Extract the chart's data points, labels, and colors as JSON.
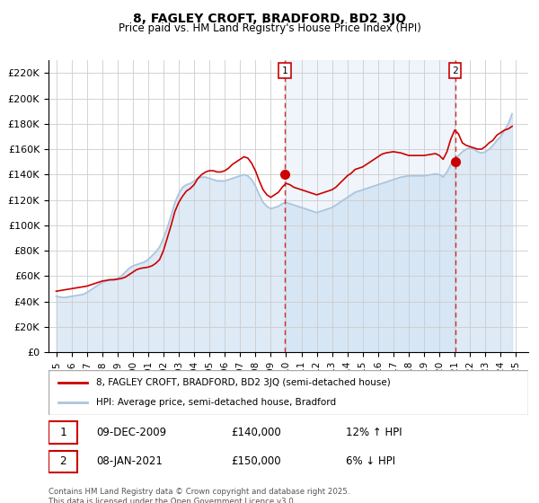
{
  "title": "8, FAGLEY CROFT, BRADFORD, BD2 3JQ",
  "subtitle": "Price paid vs. HM Land Registry's House Price Index (HPI)",
  "xlabel": "",
  "ylabel": "",
  "background_color": "#ffffff",
  "plot_bg_color": "#ffffff",
  "grid_color": "#cccccc",
  "hpi_line_color": "#aac4dd",
  "price_line_color": "#cc0000",
  "marker1_x": 2009.92,
  "marker1_label": "1",
  "marker1_price": 140000,
  "marker1_date": "09-DEC-2009",
  "marker1_hpi_change": "12% ↑ HPI",
  "marker2_x": 2021.04,
  "marker2_label": "2",
  "marker2_price": 150000,
  "marker2_date": "08-JAN-2021",
  "marker2_hpi_change": "6% ↓ HPI",
  "ylim": [
    0,
    230000
  ],
  "xlim": [
    1994.5,
    2025.8
  ],
  "legend_label_price": "8, FAGLEY CROFT, BRADFORD, BD2 3JQ (semi-detached house)",
  "legend_label_hpi": "HPI: Average price, semi-detached house, Bradford",
  "footer": "Contains HM Land Registry data © Crown copyright and database right 2025.\nThis data is licensed under the Open Government Licence v3.0.",
  "hpi_data": {
    "x": [
      1995.0,
      1995.25,
      1995.5,
      1995.75,
      1996.0,
      1996.25,
      1996.5,
      1996.75,
      1997.0,
      1997.25,
      1997.5,
      1997.75,
      1998.0,
      1998.25,
      1998.5,
      1998.75,
      1999.0,
      1999.25,
      1999.5,
      1999.75,
      2000.0,
      2000.25,
      2000.5,
      2000.75,
      2001.0,
      2001.25,
      2001.5,
      2001.75,
      2002.0,
      2002.25,
      2002.5,
      2002.75,
      2003.0,
      2003.25,
      2003.5,
      2003.75,
      2004.0,
      2004.25,
      2004.5,
      2004.75,
      2005.0,
      2005.25,
      2005.5,
      2005.75,
      2006.0,
      2006.25,
      2006.5,
      2006.75,
      2007.0,
      2007.25,
      2007.5,
      2007.75,
      2008.0,
      2008.25,
      2008.5,
      2008.75,
      2009.0,
      2009.25,
      2009.5,
      2009.75,
      2010.0,
      2010.25,
      2010.5,
      2010.75,
      2011.0,
      2011.25,
      2011.5,
      2011.75,
      2012.0,
      2012.25,
      2012.5,
      2012.75,
      2013.0,
      2013.25,
      2013.5,
      2013.75,
      2014.0,
      2014.25,
      2014.5,
      2014.75,
      2015.0,
      2015.25,
      2015.5,
      2015.75,
      2016.0,
      2016.25,
      2016.5,
      2016.75,
      2017.0,
      2017.25,
      2017.5,
      2017.75,
      2018.0,
      2018.25,
      2018.5,
      2018.75,
      2019.0,
      2019.25,
      2019.5,
      2019.75,
      2020.0,
      2020.25,
      2020.5,
      2020.75,
      2021.0,
      2021.25,
      2021.5,
      2021.75,
      2022.0,
      2022.25,
      2022.5,
      2022.75,
      2023.0,
      2023.25,
      2023.5,
      2023.75,
      2024.0,
      2024.25,
      2024.5,
      2024.75
    ],
    "y": [
      44000,
      43500,
      43000,
      43500,
      44000,
      44500,
      45000,
      45500,
      47000,
      49000,
      51000,
      53000,
      55000,
      56000,
      57000,
      57500,
      58000,
      60000,
      63000,
      66000,
      68000,
      69000,
      70000,
      71000,
      73000,
      76000,
      79000,
      83000,
      90000,
      98000,
      108000,
      118000,
      125000,
      130000,
      132000,
      133000,
      135000,
      137000,
      138000,
      138000,
      137000,
      136000,
      135000,
      135000,
      135000,
      136000,
      137000,
      138000,
      139000,
      140000,
      139000,
      136000,
      131000,
      124000,
      118000,
      115000,
      113000,
      114000,
      115000,
      117000,
      118000,
      117000,
      116000,
      115000,
      114000,
      113000,
      112000,
      111000,
      110000,
      111000,
      112000,
      113000,
      114000,
      116000,
      118000,
      120000,
      122000,
      124000,
      126000,
      127000,
      128000,
      129000,
      130000,
      131000,
      132000,
      133000,
      134000,
      135000,
      136000,
      137000,
      138000,
      138500,
      139000,
      139000,
      139000,
      139000,
      139000,
      139500,
      140000,
      140500,
      140000,
      138000,
      142000,
      148000,
      152000,
      155000,
      158000,
      160000,
      161000,
      160000,
      158000,
      157000,
      158000,
      160000,
      163000,
      167000,
      170000,
      175000,
      180000,
      188000
    ]
  },
  "price_data": {
    "x": [
      1995.0,
      1995.25,
      1995.5,
      1995.75,
      1996.0,
      1996.25,
      1996.5,
      1996.75,
      1997.0,
      1997.25,
      1997.5,
      1997.75,
      1998.0,
      1998.25,
      1998.5,
      1998.75,
      1999.0,
      1999.25,
      1999.5,
      1999.75,
      2000.0,
      2000.25,
      2000.5,
      2000.75,
      2001.0,
      2001.25,
      2001.5,
      2001.75,
      2002.0,
      2002.25,
      2002.5,
      2002.75,
      2003.0,
      2003.25,
      2003.5,
      2003.75,
      2004.0,
      2004.25,
      2004.5,
      2004.75,
      2005.0,
      2005.25,
      2005.5,
      2005.75,
      2006.0,
      2006.25,
      2006.5,
      2006.75,
      2007.0,
      2007.25,
      2007.5,
      2007.75,
      2008.0,
      2008.25,
      2008.5,
      2008.75,
      2009.0,
      2009.25,
      2009.5,
      2009.75,
      2010.0,
      2010.25,
      2010.5,
      2010.75,
      2011.0,
      2011.25,
      2011.5,
      2011.75,
      2012.0,
      2012.25,
      2012.5,
      2012.75,
      2013.0,
      2013.25,
      2013.5,
      2013.75,
      2014.0,
      2014.25,
      2014.5,
      2014.75,
      2015.0,
      2015.25,
      2015.5,
      2015.75,
      2016.0,
      2016.25,
      2016.5,
      2016.75,
      2017.0,
      2017.25,
      2017.5,
      2017.75,
      2018.0,
      2018.25,
      2018.5,
      2018.75,
      2019.0,
      2019.25,
      2019.5,
      2019.75,
      2020.0,
      2020.25,
      2020.5,
      2020.75,
      2021.0,
      2021.25,
      2021.5,
      2021.75,
      2022.0,
      2022.25,
      2022.5,
      2022.75,
      2023.0,
      2023.25,
      2023.5,
      2023.75,
      2024.0,
      2024.25,
      2024.5,
      2024.75
    ],
    "y": [
      48000,
      48500,
      49000,
      49500,
      50000,
      50500,
      51000,
      51500,
      52000,
      53000,
      54000,
      55000,
      56000,
      56500,
      57000,
      57000,
      57500,
      58000,
      59000,
      61000,
      63000,
      65000,
      66000,
      66500,
      67000,
      68000,
      70000,
      73000,
      80000,
      90000,
      100000,
      111000,
      118000,
      123000,
      127000,
      129000,
      132000,
      137000,
      140000,
      142000,
      143000,
      143000,
      142000,
      142000,
      143000,
      145000,
      148000,
      150000,
      152000,
      154000,
      153000,
      149000,
      143000,
      135000,
      128000,
      124000,
      122000,
      124000,
      126000,
      130000,
      133000,
      132000,
      130000,
      129000,
      128000,
      127000,
      126000,
      125000,
      124000,
      125000,
      126000,
      127000,
      128000,
      130000,
      133000,
      136000,
      139000,
      141000,
      144000,
      145000,
      146000,
      148000,
      150000,
      152000,
      154000,
      156000,
      157000,
      157500,
      158000,
      157500,
      157000,
      156000,
      155000,
      155000,
      155000,
      155000,
      155000,
      155500,
      156000,
      156500,
      155000,
      152000,
      158000,
      168000,
      175000,
      172000,
      165000,
      163000,
      162000,
      161000,
      160000,
      160000,
      162000,
      165000,
      167000,
      171000,
      173000,
      175000,
      176000,
      178000
    ]
  }
}
